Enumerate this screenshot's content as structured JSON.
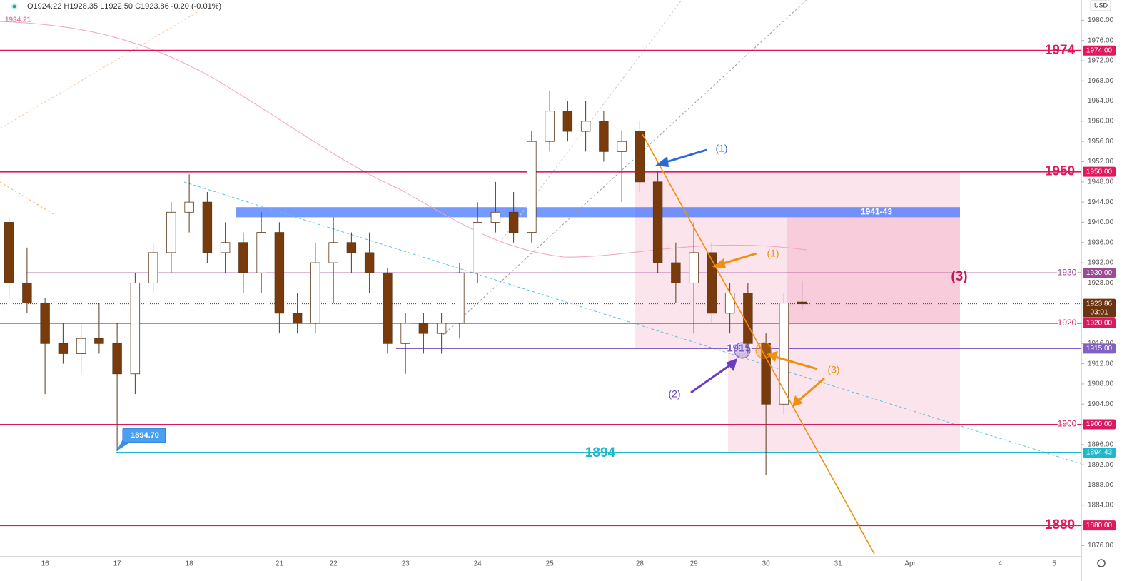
{
  "chart_data": {
    "type": "candlestick",
    "header": "O1924.22 H1928.35 L1922.50 C1923.86 -0.20 (-0.01%)",
    "currency": "USD",
    "categories": [
      null,
      null,
      "16",
      null,
      null,
      null,
      "17",
      null,
      null,
      null,
      "18",
      null,
      null,
      null,
      null,
      "21",
      null,
      null,
      "22",
      null,
      null,
      null,
      "23",
      null,
      null,
      null,
      "24",
      null,
      null,
      null,
      "25",
      null,
      null,
      null,
      null,
      "28",
      null,
      null,
      "29",
      null,
      null,
      null,
      "30",
      null,
      null,
      null,
      "31",
      null,
      null,
      null,
      "Apr",
      null,
      null,
      null,
      null,
      "4",
      null,
      null,
      "5",
      null
    ],
    "opens": [
      1940,
      1928,
      1924,
      1916,
      1914,
      1917,
      1916,
      1910,
      1928,
      1934,
      1942,
      1944,
      1934,
      1936,
      1930,
      1938,
      1922,
      1920,
      1932,
      1936,
      1934,
      1930,
      1916,
      1920,
      1918,
      1920,
      1930,
      1940,
      1942,
      1938,
      1956,
      1962,
      1958,
      1960,
      1954,
      1958,
      1948,
      1932,
      1928,
      1934,
      1922,
      1926,
      1916,
      1904,
      1924.22,
      null,
      null,
      null,
      null,
      null,
      null,
      null,
      null,
      null,
      null,
      null,
      null,
      null,
      null,
      null
    ],
    "highs": [
      1941,
      1935,
      1925,
      1920,
      1920,
      1924,
      1920,
      1930,
      1936,
      1944,
      1949.5,
      1946,
      1940,
      1938,
      1942,
      1940,
      1926,
      1936,
      1941,
      1938,
      1938,
      1931,
      1922,
      1922,
      1922,
      1932,
      1944,
      1948,
      1946,
      1958,
      1966,
      1964,
      1964,
      1962,
      1958,
      1960,
      1950,
      1936,
      1940,
      1936,
      1928,
      1928,
      1918,
      1926,
      1928.35,
      null,
      null,
      null,
      null,
      null,
      null,
      null,
      null,
      null,
      null,
      null,
      null,
      null,
      null,
      null
    ],
    "lows": [
      1925,
      1922,
      1906,
      1912,
      1910,
      1914,
      1894.7,
      1906,
      1926,
      1930,
      1938,
      1932,
      1930,
      1926,
      1926,
      1918,
      1918,
      1918,
      1924,
      1930,
      1926,
      1914,
      1910,
      1914,
      1914,
      1917,
      1928,
      1938,
      1936,
      1936,
      1954,
      1956,
      1954,
      1952,
      1944,
      1946,
      1930,
      1924,
      1918,
      1920,
      1918,
      1914,
      1890,
      1902,
      1922.5,
      null,
      null,
      null,
      null,
      null,
      null,
      null,
      null,
      null,
      null,
      null,
      null,
      null,
      null,
      null
    ],
    "closes": [
      1928,
      1924,
      1916,
      1914,
      1917,
      1916,
      1910,
      1928,
      1934,
      1942,
      1944,
      1934,
      1936,
      1930,
      1938,
      1922,
      1920,
      1932,
      1936,
      1934,
      1930,
      1916,
      1920,
      1918,
      1920,
      1930,
      1940,
      1942,
      1938,
      1956,
      1962,
      1958,
      1960,
      1954,
      1956,
      1948,
      1932,
      1928,
      1934,
      1922,
      1926,
      1916,
      1904,
      1924,
      1923.86,
      null,
      null,
      null,
      null,
      null,
      null,
      null,
      null,
      null,
      null,
      null,
      null,
      null,
      null,
      null
    ],
    "up_color": "#ffffff",
    "down_color": "#7a3b0c",
    "ylim": [
      1873.8,
      1984
    ],
    "yticks": [
      {
        "value": 1876,
        "label": "1876.00"
      },
      {
        "value": 1880,
        "label": "1880.00"
      },
      {
        "value": 1884,
        "label": "1884.00"
      },
      {
        "value": 1888,
        "label": "1888.00"
      },
      {
        "value": 1892,
        "label": "1892.00"
      },
      {
        "value": 1896,
        "label": "1896.00"
      },
      {
        "value": 1900,
        "label": "1900.00"
      },
      {
        "value": 1904,
        "label": "1904.00"
      },
      {
        "value": 1908,
        "label": "1908.00"
      },
      {
        "value": 1912,
        "label": "1912.00"
      },
      {
        "value": 1916,
        "label": "1916.00"
      },
      {
        "value": 1920,
        "label": "1920.00"
      },
      {
        "value": 1924,
        "label": "1924.00"
      },
      {
        "value": 1928,
        "label": "1928.00"
      },
      {
        "value": 1932,
        "label": "1932.00"
      },
      {
        "value": 1936,
        "label": "1936.00"
      },
      {
        "value": 1940,
        "label": "1940.00"
      },
      {
        "value": 1944,
        "label": "1944.00"
      },
      {
        "value": 1948,
        "label": "1948.00"
      },
      {
        "value": 1952,
        "label": "1952.00"
      },
      {
        "value": 1956,
        "label": "1956.00"
      },
      {
        "value": 1960,
        "label": "1960.00"
      },
      {
        "value": 1964,
        "label": "1964.00"
      },
      {
        "value": 1968,
        "label": "1968.00"
      },
      {
        "value": 1972,
        "label": "1972.00"
      },
      {
        "value": 1976,
        "label": "1976.00"
      },
      {
        "value": 1980,
        "label": "1980.00"
      }
    ],
    "levels": [
      {
        "value": 1974,
        "label": "1974",
        "badge": "1974.00",
        "color": "#e0195f"
      },
      {
        "value": 1950,
        "label": "1950",
        "badge": "1950.00",
        "color": "#e0195f"
      },
      {
        "value": 1930,
        "label": "1930",
        "badge": "1930.00",
        "color": "#9b4b95"
      },
      {
        "value": 1920,
        "label": "1920",
        "badge": "1920.00",
        "color": "#d81b60"
      },
      {
        "value": 1915,
        "label": "1915",
        "badge": "1915.00",
        "color": "#8160c4"
      },
      {
        "value": 1900,
        "label": "1900",
        "badge": "1900.00",
        "color": "#d81b60"
      },
      {
        "value": 1894.43,
        "label": "1894",
        "badge": "1894.43",
        "color": "#1fb7c9"
      },
      {
        "value": 1880,
        "label": "1880",
        "badge": "1880.00",
        "color": "#e0195f"
      }
    ],
    "current": {
      "value": 1923.86,
      "label": "1923.86",
      "timer": "03:01",
      "color": "#6b3410"
    },
    "zones": [
      {
        "ylim": [
          1915,
          1950
        ],
        "color": "rgba(233,30,99,0.12)"
      },
      {
        "ylim": [
          1894.43,
          1915
        ],
        "color": "rgba(233,30,99,0.12)"
      },
      {
        "ylim": [
          1920,
          1941
        ],
        "color": "rgba(233,30,99,0.12)"
      },
      {
        "name": "1941-43",
        "ylim": [
          1941,
          1943
        ],
        "color": "rgba(41,98,255,0.65)"
      }
    ],
    "annotations": [
      {
        "text": "(1)",
        "color": "#2a6ad8"
      },
      {
        "text": "(1)",
        "color": "#f0900f"
      },
      {
        "text": "(2)",
        "color": "#6a3fbf"
      },
      {
        "text": "(3)",
        "color": "#f0900f"
      },
      {
        "text": "(3)",
        "color": "#c2185b"
      },
      {
        "text": "1894.70",
        "color": "#ffffff"
      },
      {
        "text": "1934.21",
        "color": "#e57fa6"
      }
    ]
  }
}
